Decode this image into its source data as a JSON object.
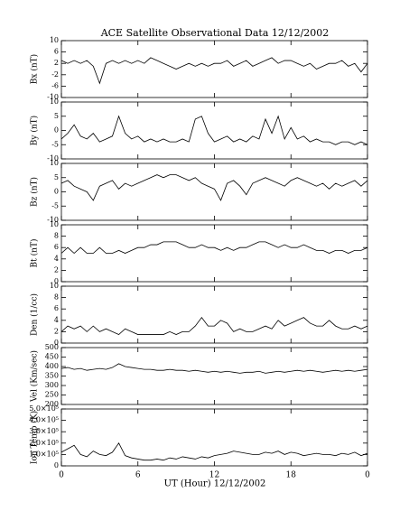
{
  "chart_data": [
    {
      "type": "line",
      "title": "ACE Satellite Observational Data   12/12/2002",
      "ylabel": "Bx (nT)",
      "color": "#000000",
      "x": [
        0,
        0.5,
        1,
        1.5,
        2,
        2.5,
        3,
        3.5,
        4,
        4.5,
        5,
        5.5,
        6,
        6.5,
        7,
        7.5,
        8,
        8.5,
        9,
        9.5,
        10,
        10.5,
        11,
        11.5,
        12,
        12.5,
        13,
        13.5,
        14,
        14.5,
        15,
        15.5,
        16,
        16.5,
        17,
        17.5,
        18,
        18.5,
        19,
        19.5,
        20,
        20.5,
        21,
        21.5,
        22,
        22.5,
        23,
        23.5,
        24
      ],
      "values": [
        3,
        2,
        3,
        2,
        3,
        1,
        -5,
        2,
        3,
        2,
        3,
        2,
        3,
        2,
        4,
        3,
        2,
        1,
        0,
        1,
        2,
        1,
        2,
        1,
        2,
        2,
        3,
        1,
        2,
        3,
        1,
        2,
        3,
        4,
        2,
        3,
        3,
        2,
        1,
        2,
        0,
        1,
        2,
        2,
        3,
        1,
        2,
        -1,
        2
      ],
      "xlim": [
        0,
        24
      ],
      "xticks": [
        0,
        6,
        12,
        18,
        24
      ],
      "ylim": [
        -10,
        10
      ],
      "yticks": [
        -10,
        -6,
        -2,
        2,
        6,
        10
      ]
    },
    {
      "type": "line",
      "ylabel": "By (nT)",
      "color": "#000000",
      "x": [
        0,
        0.5,
        1,
        1.5,
        2,
        2.5,
        3,
        3.5,
        4,
        4.5,
        5,
        5.5,
        6,
        6.5,
        7,
        7.5,
        8,
        8.5,
        9,
        9.5,
        10,
        10.5,
        11,
        11.5,
        12,
        12.5,
        13,
        13.5,
        14,
        14.5,
        15,
        15.5,
        16,
        16.5,
        17,
        17.5,
        18,
        18.5,
        19,
        19.5,
        20,
        20.5,
        21,
        21.5,
        22,
        22.5,
        23,
        23.5,
        24
      ],
      "values": [
        -3,
        -1,
        2,
        -2,
        -3,
        -1,
        -4,
        -3,
        -2,
        5,
        -1,
        -3,
        -2,
        -4,
        -3,
        -4,
        -3,
        -4,
        -4,
        -3,
        -4,
        4,
        5,
        -1,
        -4,
        -3,
        -2,
        -4,
        -3,
        -4,
        -2,
        -3,
        4,
        -1,
        5,
        -3,
        1,
        -3,
        -2,
        -4,
        -3,
        -4,
        -4,
        -5,
        -4,
        -4,
        -5,
        -4,
        -5
      ],
      "xlim": [
        0,
        24
      ],
      "xticks": [
        0,
        6,
        12,
        18,
        24
      ],
      "ylim": [
        -10,
        10
      ],
      "yticks": [
        -10,
        -5,
        0,
        5,
        10
      ]
    },
    {
      "type": "line",
      "ylabel": "Bz (nT)",
      "color": "#000000",
      "x": [
        0,
        0.5,
        1,
        1.5,
        2,
        2.5,
        3,
        3.5,
        4,
        4.5,
        5,
        5.5,
        6,
        6.5,
        7,
        7.5,
        8,
        8.5,
        9,
        9.5,
        10,
        10.5,
        11,
        11.5,
        12,
        12.5,
        13,
        13.5,
        14,
        14.5,
        15,
        15.5,
        16,
        16.5,
        17,
        17.5,
        18,
        18.5,
        19,
        19.5,
        20,
        20.5,
        21,
        21.5,
        22,
        22.5,
        23,
        23.5,
        24
      ],
      "values": [
        3,
        4,
        2,
        1,
        0,
        -3,
        2,
        3,
        4,
        1,
        3,
        2,
        3,
        4,
        5,
        6,
        5,
        6,
        6,
        5,
        4,
        5,
        3,
        2,
        1,
        -3,
        3,
        4,
        2,
        -1,
        3,
        4,
        5,
        4,
        3,
        2,
        4,
        5,
        4,
        3,
        2,
        3,
        1,
        3,
        2,
        3,
        4,
        2,
        4
      ],
      "xlim": [
        0,
        24
      ],
      "xticks": [
        0,
        6,
        12,
        18,
        24
      ],
      "ylim": [
        -10,
        10
      ],
      "yticks": [
        -10,
        -5,
        0,
        5,
        10
      ]
    },
    {
      "type": "line",
      "ylabel": "Bt (nT)",
      "color": "#000000",
      "x": [
        0,
        0.5,
        1,
        1.5,
        2,
        2.5,
        3,
        3.5,
        4,
        4.5,
        5,
        5.5,
        6,
        6.5,
        7,
        7.5,
        8,
        8.5,
        9,
        9.5,
        10,
        10.5,
        11,
        11.5,
        12,
        12.5,
        13,
        13.5,
        14,
        14.5,
        15,
        15.5,
        16,
        16.5,
        17,
        17.5,
        18,
        18.5,
        19,
        19.5,
        20,
        20.5,
        21,
        21.5,
        22,
        22.5,
        23,
        23.5,
        24
      ],
      "values": [
        5,
        6,
        5,
        6,
        5,
        5,
        6,
        5,
        5,
        5.5,
        5,
        5.5,
        6,
        6,
        6.5,
        6.5,
        7,
        7,
        7,
        6.5,
        6,
        6,
        6.5,
        6,
        6,
        5.5,
        6,
        5.5,
        6,
        6,
        6.5,
        7,
        7,
        6.5,
        6,
        6.5,
        6,
        6,
        6.5,
        6,
        5.5,
        5.5,
        5,
        5.5,
        5.5,
        5,
        5.5,
        5.5,
        6
      ],
      "xlim": [
        0,
        24
      ],
      "xticks": [
        0,
        6,
        12,
        18,
        24
      ],
      "ylim": [
        0,
        10
      ],
      "yticks": [
        0,
        2,
        4,
        6,
        8,
        10
      ]
    },
    {
      "type": "line",
      "ylabel": "Den (1/cc)",
      "color": "#000000",
      "x": [
        0,
        0.5,
        1,
        1.5,
        2,
        2.5,
        3,
        3.5,
        4,
        4.5,
        5,
        5.5,
        6,
        6.5,
        7,
        7.5,
        8,
        8.5,
        9,
        9.5,
        10,
        10.5,
        11,
        11.5,
        12,
        12.5,
        13,
        13.5,
        14,
        14.5,
        15,
        15.5,
        16,
        16.5,
        17,
        17.5,
        18,
        18.5,
        19,
        19.5,
        20,
        20.5,
        21,
        21.5,
        22,
        22.5,
        23,
        23.5,
        24
      ],
      "values": [
        2,
        3,
        2.5,
        3,
        2,
        3,
        2,
        2.5,
        2,
        1.5,
        2.5,
        2,
        1.5,
        1.5,
        1.5,
        1.5,
        1.5,
        2,
        1.5,
        2,
        2,
        3,
        4.5,
        3,
        3,
        4,
        3.5,
        2,
        2.5,
        2,
        2,
        2.5,
        3,
        2.5,
        4,
        3,
        3.5,
        4,
        4.5,
        3.5,
        3,
        3,
        4,
        3,
        2.5,
        2.5,
        3,
        2.5,
        3
      ],
      "xlim": [
        0,
        24
      ],
      "xticks": [
        0,
        6,
        12,
        18,
        24
      ],
      "ylim": [
        0,
        10
      ],
      "yticks": [
        0,
        2,
        4,
        6,
        8,
        10
      ]
    },
    {
      "type": "line",
      "ylabel": "Vel (Km/sec)",
      "color": "#000000",
      "x": [
        0,
        0.5,
        1,
        1.5,
        2,
        2.5,
        3,
        3.5,
        4,
        4.5,
        5,
        5.5,
        6,
        6.5,
        7,
        7.5,
        8,
        8.5,
        9,
        9.5,
        10,
        10.5,
        11,
        11.5,
        12,
        12.5,
        13,
        13.5,
        14,
        14.5,
        15,
        15.5,
        16,
        16.5,
        17,
        17.5,
        18,
        18.5,
        19,
        19.5,
        20,
        20.5,
        21,
        21.5,
        22,
        22.5,
        23,
        23.5,
        24
      ],
      "values": [
        390,
        395,
        385,
        390,
        380,
        385,
        390,
        385,
        395,
        415,
        400,
        395,
        390,
        385,
        385,
        380,
        380,
        385,
        380,
        380,
        375,
        380,
        375,
        370,
        375,
        370,
        375,
        370,
        365,
        370,
        370,
        375,
        365,
        370,
        375,
        370,
        375,
        380,
        375,
        380,
        375,
        370,
        375,
        380,
        375,
        380,
        375,
        380,
        385
      ],
      "xlim": [
        0,
        24
      ],
      "xticks": [
        0,
        6,
        12,
        18,
        24
      ],
      "ylim": [
        200,
        500
      ],
      "yticks": [
        200,
        250,
        300,
        350,
        400,
        450,
        500
      ]
    },
    {
      "type": "line",
      "ylabel": "Ion Temp (K)",
      "xlabel": "UT (Hour)  12/12/2002",
      "color": "#000000",
      "x": [
        0,
        0.5,
        1,
        1.5,
        2,
        2.5,
        3,
        3.5,
        4,
        4.5,
        5,
        5.5,
        6,
        6.5,
        7,
        7.5,
        8,
        8.5,
        9,
        9.5,
        10,
        10.5,
        11,
        11.5,
        12,
        12.5,
        13,
        13.5,
        14,
        14.5,
        15,
        15.5,
        16,
        16.5,
        17,
        17.5,
        18,
        18.5,
        19,
        19.5,
        20,
        20.5,
        21,
        21.5,
        22,
        22.5,
        23,
        23.5,
        24
      ],
      "values": [
        120000,
        150000,
        180000,
        100000,
        80000,
        130000,
        100000,
        90000,
        120000,
        200000,
        90000,
        70000,
        60000,
        50000,
        50000,
        60000,
        50000,
        70000,
        60000,
        80000,
        70000,
        60000,
        80000,
        70000,
        90000,
        100000,
        110000,
        130000,
        120000,
        110000,
        100000,
        100000,
        120000,
        110000,
        130000,
        100000,
        120000,
        110000,
        90000,
        100000,
        110000,
        100000,
        100000,
        90000,
        110000,
        100000,
        120000,
        90000,
        110000
      ],
      "xlim": [
        0,
        24
      ],
      "xticks": [
        0,
        6,
        12,
        18,
        {
          "value": 24,
          "label": "0"
        }
      ],
      "ylim": [
        0,
        500000
      ],
      "yticks": [
        0,
        {
          "value": 100000,
          "label": "1.0×10⁵"
        },
        {
          "value": 200000,
          "label": "2.0×10⁵"
        },
        {
          "value": 300000,
          "label": "3.0×10⁵"
        },
        {
          "value": 400000,
          "label": "4.0×10⁵"
        },
        {
          "value": 500000,
          "label": "5.0×10⁵"
        }
      ]
    }
  ]
}
